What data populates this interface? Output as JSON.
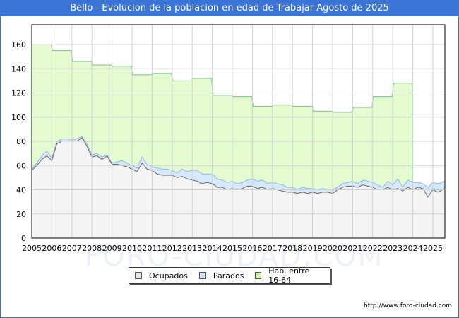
{
  "title": "Bello - Evolucion de la poblacion en edad de Trabajar Agosto de 2025",
  "footer": {
    "url": "http://www.foro-ciudad.com"
  },
  "watermark": "FORO-CIUDAD.COM",
  "colors": {
    "title_bar": "#3a74d6",
    "ocupados_fill": "#f4f4f4",
    "ocupados_line": "#666666",
    "parados_fill": "#d6e8fb",
    "parados_line": "#8fb6e8",
    "hab_fill": "#e4fbd0",
    "hab_line": "#7cbf8f",
    "grid": "#d0d0d0"
  },
  "legend": {
    "items": [
      {
        "label": "Ocupados",
        "color": "#e8e8e8"
      },
      {
        "label": "Parados",
        "color": "#cfe4fa"
      },
      {
        "label": "Hab. entre 16-64",
        "color": "#c6f5a0"
      }
    ]
  },
  "chart_data": {
    "type": "area",
    "title": "Bello - Evolucion de la poblacion en edad de Trabajar Agosto de 2025",
    "xlabel": "",
    "ylabel": "",
    "ylim": [
      0,
      175
    ],
    "yticks": [
      0,
      20,
      40,
      60,
      80,
      100,
      120,
      140,
      160
    ],
    "xticks": [
      "2005",
      "2006",
      "2007",
      "2008",
      "2009",
      "2010",
      "2011",
      "2012",
      "2013",
      "2014",
      "2015",
      "2016",
      "2017",
      "2018",
      "2019",
      "2020",
      "2021",
      "2022",
      "2023",
      "2024",
      "2025"
    ],
    "grid": true,
    "legend_position": "bottom",
    "series": [
      {
        "name": "Hab. entre 16-64",
        "kind": "annual-step",
        "x": [
          2005,
          2006,
          2007,
          2008,
          2009,
          2010,
          2011,
          2012,
          2013,
          2014,
          2015,
          2016,
          2017,
          2018,
          2019,
          2020,
          2021,
          2022,
          2023
        ],
        "values": [
          160,
          155,
          146,
          143,
          142,
          135,
          136,
          130,
          132,
          118,
          117,
          109,
          110,
          109,
          105,
          104,
          108,
          117,
          128
        ]
      },
      {
        "name": "Parados (Ocupados + Parados)",
        "kind": "monthly",
        "x": [
          2005.0,
          2005.25,
          2005.5,
          2005.75,
          2006.0,
          2006.25,
          2006.5,
          2006.75,
          2007.0,
          2007.25,
          2007.5,
          2007.75,
          2008.0,
          2008.25,
          2008.5,
          2008.75,
          2009.0,
          2009.25,
          2009.5,
          2009.75,
          2010.0,
          2010.25,
          2010.5,
          2010.75,
          2011.0,
          2011.25,
          2011.5,
          2011.75,
          2012.0,
          2012.25,
          2012.5,
          2012.75,
          2013.0,
          2013.25,
          2013.5,
          2013.75,
          2014.0,
          2014.25,
          2014.5,
          2014.75,
          2015.0,
          2015.25,
          2015.5,
          2015.75,
          2016.0,
          2016.25,
          2016.5,
          2016.75,
          2017.0,
          2017.25,
          2017.5,
          2017.75,
          2018.0,
          2018.25,
          2018.5,
          2018.75,
          2019.0,
          2019.25,
          2019.5,
          2019.75,
          2020.0,
          2020.25,
          2020.5,
          2020.75,
          2021.0,
          2021.25,
          2021.5,
          2021.75,
          2022.0,
          2022.25,
          2022.5,
          2022.75,
          2023.0,
          2023.25,
          2023.5,
          2023.75,
          2024.0,
          2024.25,
          2024.5,
          2024.75,
          2025.0,
          2025.25,
          2025.58
        ],
        "values": [
          57,
          62,
          68,
          72,
          66,
          80,
          82,
          82,
          81,
          82,
          84,
          78,
          69,
          70,
          67,
          69,
          62,
          63,
          64,
          62,
          60,
          58,
          67,
          61,
          59,
          58,
          57,
          57,
          56,
          54,
          57,
          55,
          56,
          56,
          53,
          53,
          53,
          49,
          48,
          46,
          47,
          45,
          46,
          48,
          49,
          47,
          48,
          45,
          46,
          45,
          44,
          42,
          42,
          40,
          42,
          41,
          41,
          40,
          41,
          40,
          40,
          42,
          45,
          46,
          47,
          45,
          48,
          47,
          46,
          44,
          42,
          47,
          44,
          49,
          42,
          48,
          46,
          46,
          45,
          42,
          46,
          45,
          47
        ]
      },
      {
        "name": "Ocupados",
        "kind": "monthly",
        "x": [
          2005.0,
          2005.25,
          2005.5,
          2005.75,
          2006.0,
          2006.25,
          2006.5,
          2006.75,
          2007.0,
          2007.25,
          2007.5,
          2007.75,
          2008.0,
          2008.25,
          2008.5,
          2008.75,
          2009.0,
          2009.25,
          2009.5,
          2009.75,
          2010.0,
          2010.25,
          2010.5,
          2010.75,
          2011.0,
          2011.25,
          2011.5,
          2011.75,
          2012.0,
          2012.25,
          2012.5,
          2012.75,
          2013.0,
          2013.25,
          2013.5,
          2013.75,
          2014.0,
          2014.25,
          2014.5,
          2014.75,
          2015.0,
          2015.25,
          2015.5,
          2015.75,
          2016.0,
          2016.25,
          2016.5,
          2016.75,
          2017.0,
          2017.25,
          2017.5,
          2017.75,
          2018.0,
          2018.25,
          2018.5,
          2018.75,
          2019.0,
          2019.25,
          2019.5,
          2019.75,
          2020.0,
          2020.25,
          2020.5,
          2020.75,
          2021.0,
          2021.25,
          2021.5,
          2021.75,
          2022.0,
          2022.25,
          2022.5,
          2022.75,
          2023.0,
          2023.25,
          2023.5,
          2023.75,
          2024.0,
          2024.25,
          2024.5,
          2024.75,
          2025.0,
          2025.25,
          2025.58
        ],
        "values": [
          56,
          60,
          65,
          68,
          64,
          78,
          80,
          80,
          80,
          80,
          83,
          76,
          67,
          68,
          65,
          68,
          61,
          61,
          60,
          59,
          57,
          55,
          62,
          57,
          56,
          53,
          52,
          52,
          52,
          50,
          51,
          49,
          48,
          47,
          45,
          46,
          45,
          42,
          42,
          40,
          41,
          40,
          41,
          43,
          43,
          41,
          42,
          40,
          41,
          40,
          39,
          38,
          38,
          37,
          38,
          37,
          38,
          37,
          38,
          38,
          37,
          40,
          42,
          43,
          43,
          42,
          44,
          43,
          42,
          40,
          40,
          42,
          40,
          41,
          39,
          42,
          40,
          42,
          41,
          34,
          40,
          38,
          41
        ]
      }
    ]
  },
  "axes": {
    "y_labels": [
      "0",
      "20",
      "40",
      "60",
      "80",
      "100",
      "120",
      "140",
      "160"
    ],
    "x_labels": [
      "2005",
      "2006",
      "2007",
      "2008",
      "2009",
      "2010",
      "2011",
      "2012",
      "2013",
      "2014",
      "2015",
      "2016",
      "2017",
      "2018",
      "2019",
      "2020",
      "2021",
      "2022",
      "2023",
      "2024",
      "2025"
    ]
  }
}
